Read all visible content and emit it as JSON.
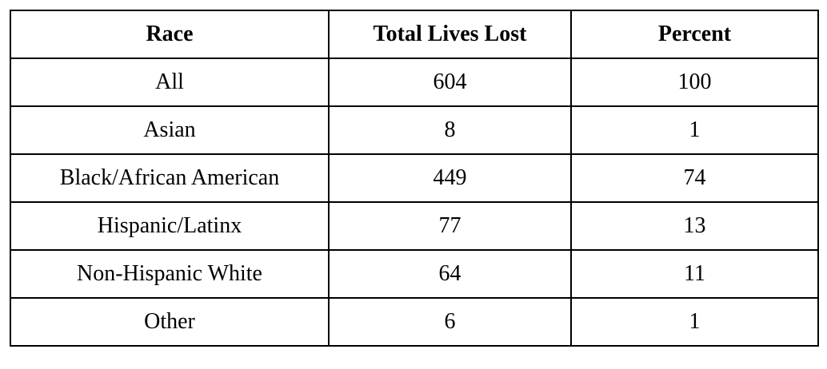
{
  "table": {
    "header": [
      "Race",
      "Total Lives Lost",
      "Percent"
    ],
    "rows": [
      [
        "All",
        604,
        100
      ],
      [
        "Asian",
        8,
        1
      ],
      [
        "Black/African American",
        449,
        74
      ],
      [
        "Hispanic/Latinx",
        77,
        13
      ],
      [
        "Non-Hispanic White",
        64,
        11
      ],
      [
        "Other",
        6,
        1
      ]
    ]
  }
}
